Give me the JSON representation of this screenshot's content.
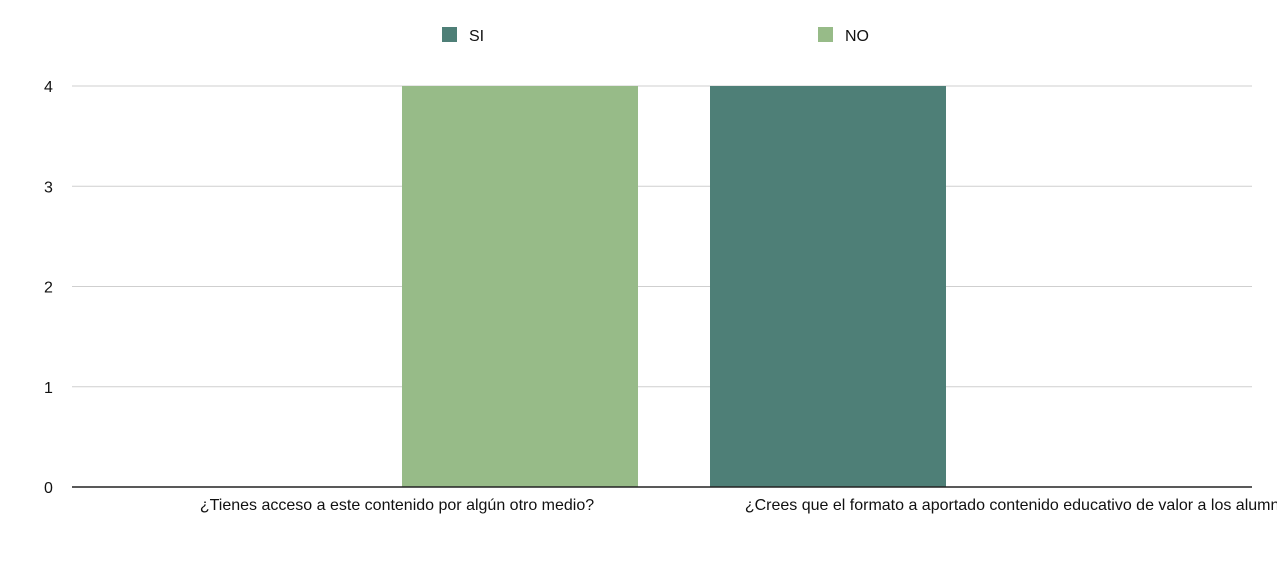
{
  "chart_data": {
    "type": "bar",
    "categories": [
      "¿Tienes acceso a este contenido por algún otro medio?",
      "¿Crees que el formato a aportado contenido educativo de valor a los alumnos?"
    ],
    "series": [
      {
        "name": "SI",
        "color": "#4e7f77",
        "values": [
          0,
          4
        ]
      },
      {
        "name": "NO",
        "color": "#97bb88",
        "values": [
          4,
          0
        ]
      }
    ],
    "ylim": [
      0,
      4
    ],
    "yticks": [
      0,
      1,
      2,
      3,
      4
    ],
    "grid": true,
    "legend_position": "top-center",
    "title": "",
    "xlabel": "",
    "ylabel": ""
  }
}
